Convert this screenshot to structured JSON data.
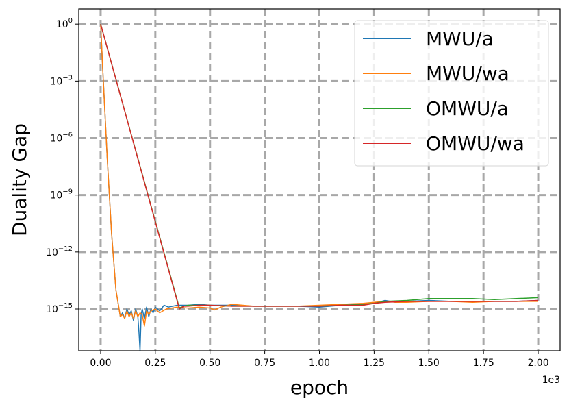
{
  "chart_data": {
    "type": "line",
    "title": "",
    "xlabel": "epoch",
    "ylabel": "Duality Gap",
    "x_offset_label": "1e3",
    "xlim": [
      -0.1,
      2.1
    ],
    "ylim_log10": [
      -17.2,
      0.8
    ],
    "y_scale": "log",
    "grid": true,
    "grid_style": "dashed",
    "legend_position": "top-right",
    "x_ticks": [
      0.0,
      0.25,
      0.5,
      0.75,
      1.0,
      1.25,
      1.5,
      1.75,
      2.0
    ],
    "x_tick_labels": [
      "0.00",
      "0.25",
      "0.50",
      "0.75",
      "1.00",
      "1.25",
      "1.50",
      "1.75",
      "2.00"
    ],
    "y_tick_exponents": [
      0,
      -3,
      -6,
      -9,
      -12,
      -15
    ],
    "y_tick_labels": [
      {
        "base": "10",
        "exp": "0"
      },
      {
        "base": "10",
        "exp": "−3"
      },
      {
        "base": "10",
        "exp": "−6"
      },
      {
        "base": "10",
        "exp": "−9"
      },
      {
        "base": "10",
        "exp": "−12"
      },
      {
        "base": "10",
        "exp": "−15"
      }
    ],
    "series": [
      {
        "name": "MWU/a",
        "color": "#1f77b4",
        "points": [
          [
            0.0,
            0.0
          ],
          [
            0.01,
            -2.5
          ],
          [
            0.03,
            -7
          ],
          [
            0.05,
            -11
          ],
          [
            0.07,
            -14
          ],
          [
            0.09,
            -15.4
          ],
          [
            0.1,
            -15.2
          ],
          [
            0.11,
            -15.5
          ],
          [
            0.12,
            -15.0
          ],
          [
            0.13,
            -15.3
          ],
          [
            0.14,
            -15.1
          ],
          [
            0.15,
            -15.6
          ],
          [
            0.16,
            -15.0
          ],
          [
            0.17,
            -15.4
          ],
          [
            0.175,
            -16.2
          ],
          [
            0.18,
            -17.2
          ],
          [
            0.185,
            -15.3
          ],
          [
            0.19,
            -15.0
          ],
          [
            0.2,
            -15.5
          ],
          [
            0.21,
            -14.9
          ],
          [
            0.22,
            -15.4
          ],
          [
            0.23,
            -15.0
          ],
          [
            0.24,
            -15.2
          ],
          [
            0.25,
            -14.9
          ],
          [
            0.27,
            -15.1
          ],
          [
            0.29,
            -14.8
          ],
          [
            0.31,
            -14.9
          ],
          [
            0.35,
            -14.8
          ],
          [
            0.4,
            -14.8
          ],
          [
            0.45,
            -14.75
          ],
          [
            0.5,
            -14.8
          ],
          [
            0.6,
            -14.8
          ],
          [
            0.7,
            -14.85
          ],
          [
            0.8,
            -14.85
          ],
          [
            0.9,
            -14.85
          ],
          [
            1.0,
            -14.9
          ],
          [
            1.1,
            -14.8
          ],
          [
            1.2,
            -14.75
          ],
          [
            1.25,
            -14.7
          ],
          [
            1.3,
            -14.55
          ],
          [
            1.35,
            -14.65
          ],
          [
            1.4,
            -14.6
          ],
          [
            1.5,
            -14.55
          ],
          [
            1.6,
            -14.6
          ],
          [
            1.7,
            -14.6
          ],
          [
            1.8,
            -14.6
          ],
          [
            1.9,
            -14.6
          ],
          [
            2.0,
            -14.55
          ]
        ]
      },
      {
        "name": "MWU/wa",
        "color": "#ff7f0e",
        "points": [
          [
            0.0,
            0.0
          ],
          [
            0.01,
            -2.5
          ],
          [
            0.03,
            -7
          ],
          [
            0.05,
            -11
          ],
          [
            0.07,
            -14
          ],
          [
            0.09,
            -15.4
          ],
          [
            0.1,
            -15.3
          ],
          [
            0.11,
            -15.5
          ],
          [
            0.12,
            -15.1
          ],
          [
            0.13,
            -15.4
          ],
          [
            0.14,
            -15.2
          ],
          [
            0.15,
            -15.5
          ],
          [
            0.16,
            -15.1
          ],
          [
            0.17,
            -15.4
          ],
          [
            0.18,
            -15.2
          ],
          [
            0.19,
            -15.3
          ],
          [
            0.2,
            -15.9
          ],
          [
            0.21,
            -15.1
          ],
          [
            0.22,
            -15.3
          ],
          [
            0.23,
            -15.1
          ],
          [
            0.25,
            -15.0
          ],
          [
            0.27,
            -15.2
          ],
          [
            0.3,
            -15.0
          ],
          [
            0.35,
            -14.9
          ],
          [
            0.4,
            -14.95
          ],
          [
            0.45,
            -14.9
          ],
          [
            0.5,
            -14.95
          ],
          [
            0.52,
            -15.05
          ],
          [
            0.55,
            -14.9
          ],
          [
            0.6,
            -14.75
          ],
          [
            0.65,
            -14.8
          ],
          [
            0.7,
            -14.85
          ],
          [
            0.8,
            -14.85
          ],
          [
            0.9,
            -14.85
          ],
          [
            1.0,
            -14.8
          ],
          [
            1.1,
            -14.75
          ],
          [
            1.2,
            -14.7
          ],
          [
            1.25,
            -14.65
          ],
          [
            1.3,
            -14.6
          ],
          [
            1.35,
            -14.65
          ],
          [
            1.4,
            -14.65
          ],
          [
            1.5,
            -14.6
          ],
          [
            1.6,
            -14.6
          ],
          [
            1.7,
            -14.65
          ],
          [
            1.8,
            -14.6
          ],
          [
            1.9,
            -14.6
          ],
          [
            2.0,
            -14.6
          ]
        ]
      },
      {
        "name": "OMWU/a",
        "color": "#2ca02c",
        "points": [
          [
            0.0,
            0.0
          ],
          [
            0.36,
            -14.95
          ],
          [
            0.38,
            -14.85
          ],
          [
            0.4,
            -14.8
          ],
          [
            0.45,
            -14.8
          ],
          [
            0.5,
            -14.8
          ],
          [
            0.6,
            -14.85
          ],
          [
            0.7,
            -14.85
          ],
          [
            0.8,
            -14.85
          ],
          [
            0.9,
            -14.85
          ],
          [
            1.0,
            -14.85
          ],
          [
            1.1,
            -14.8
          ],
          [
            1.2,
            -14.75
          ],
          [
            1.25,
            -14.7
          ],
          [
            1.3,
            -14.6
          ],
          [
            1.4,
            -14.55
          ],
          [
            1.5,
            -14.45
          ],
          [
            1.6,
            -14.45
          ],
          [
            1.7,
            -14.45
          ],
          [
            1.8,
            -14.5
          ],
          [
            1.9,
            -14.45
          ],
          [
            2.0,
            -14.4
          ]
        ]
      },
      {
        "name": "OMWU/wa",
        "color": "#d62728",
        "points": [
          [
            0.0,
            0.0
          ],
          [
            0.36,
            -15.0
          ],
          [
            0.38,
            -14.85
          ],
          [
            0.4,
            -14.85
          ],
          [
            0.45,
            -14.8
          ],
          [
            0.5,
            -14.8
          ],
          [
            0.6,
            -14.85
          ],
          [
            0.7,
            -14.85
          ],
          [
            0.8,
            -14.85
          ],
          [
            0.9,
            -14.85
          ],
          [
            1.0,
            -14.85
          ],
          [
            1.1,
            -14.8
          ],
          [
            1.2,
            -14.8
          ],
          [
            1.25,
            -14.7
          ],
          [
            1.3,
            -14.65
          ],
          [
            1.4,
            -14.6
          ],
          [
            1.5,
            -14.6
          ],
          [
            1.6,
            -14.6
          ],
          [
            1.7,
            -14.6
          ],
          [
            1.8,
            -14.6
          ],
          [
            1.9,
            -14.6
          ],
          [
            2.0,
            -14.55
          ]
        ]
      }
    ]
  }
}
